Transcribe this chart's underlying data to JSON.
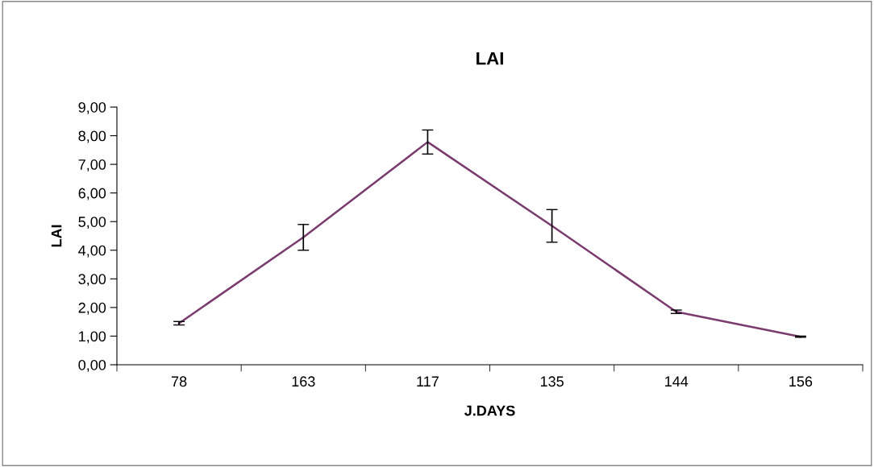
{
  "chart_data": {
    "type": "line",
    "title": "LAI",
    "xlabel": "J.DAYS",
    "ylabel": "LAI",
    "categories": [
      "78",
      "163",
      "117",
      "135",
      "144",
      "156"
    ],
    "series": [
      {
        "color": "#7a3b6e",
        "values": [
          1.45,
          4.45,
          7.78,
          4.85,
          1.85,
          0.98
        ],
        "errors": [
          0.06,
          0.45,
          0.42,
          0.57,
          0.06,
          0.02
        ]
      }
    ],
    "ylim": [
      0,
      9
    ],
    "yticks": [
      {
        "value": 0,
        "label": "0,00"
      },
      {
        "value": 1,
        "label": "1,00"
      },
      {
        "value": 2,
        "label": "2,00"
      },
      {
        "value": 3,
        "label": "3,00"
      },
      {
        "value": 4,
        "label": "4,00"
      },
      {
        "value": 5,
        "label": "5,00"
      },
      {
        "value": 6,
        "label": "6,00"
      },
      {
        "value": 7,
        "label": "7,00"
      },
      {
        "value": 8,
        "label": "8,00"
      },
      {
        "value": 9,
        "label": "9,00"
      }
    ],
    "grid": false,
    "legend": false,
    "marker": "none",
    "line_style": "solid"
  }
}
